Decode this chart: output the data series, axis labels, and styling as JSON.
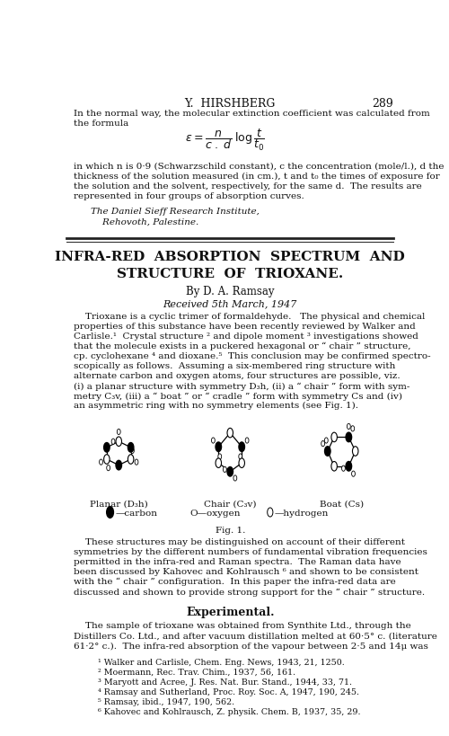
{
  "figsize": [
    5.0,
    8.19
  ],
  "dpi": 100,
  "bg_color": "#ffffff",
  "header_author": "Y.  HIRSHBERG",
  "header_page": "289",
  "title_line1": "INFRA-RED  ABSORPTION  SPECTRUM  AND",
  "title_line2": "STRUCTURE  OF  TRIOXANE.",
  "author_line": "By D. A. Ramsay",
  "received_line": "Received 5th March, 1947",
  "label_planar": "Planar (D₃h)",
  "label_chair": "Chair (C₃v)",
  "label_boat": "Boat (Cs)",
  "fig_caption": "Fig. 1.",
  "experimental_heading": "Experimental.",
  "footnotes": [
    "¹ Walker and Carlisle, Chem. Eng. News, 1943, 21, 1250.",
    "² Moermann, Rec. Trav. Chim., 1937, 56, 161.",
    "³ Maryott and Acree, J. Res. Nat. Bur. Stand., 1944, 33, 71.",
    "⁴ Ramsay and Sutherland, Proc. Roy. Soc. A, 1947, 190, 245.",
    "⁵ Ramsay, ibid., 1947, 190, 562.",
    "⁶ Kahovec and Kohlrausch, Z. physik. Chem. B, 1937, 35, 29."
  ],
  "text_color": "#111111",
  "top_para_lines": [
    "In the normal way, the molecular extinction coefficient was calculated from",
    "the formula"
  ],
  "exp_explain_lines": [
    "in which n is 0·9 (Schwarzschild constant), c the concentration (mole/l.), d the",
    "thickness of the solution measured (in cm.), t and t₀ the times of exposure for",
    "the solution and the solvent, respectively, for the same d.  The results are",
    "represented in four groups of absorption curves."
  ],
  "affil_lines": [
    "The Daniel Sieff Research Institute,",
    "    Rehovoth, Palestine."
  ],
  "intro_lines": [
    "    Trioxane is a cyclic trimer of formaldehyde.   The physical and chemical",
    "properties of this substance have been recently reviewed by Walker and",
    "Carlisle.¹  Crystal structure ² and dipole moment ³ investigations showed",
    "that the molecule exists in a puckered hexagonal or “ chair ” structure,",
    "cp. cyclohexane ⁴ and dioxane.⁵  This conclusion may be confirmed spectro-",
    "scopically as follows.  Assuming a six-membered ring structure with",
    "alternate carbon and oxygen atoms, four structures are possible, viz.",
    "(i) a planar structure with symmetry D₃h, (ii) a “ chair ” form with sym-",
    "metry C₃v, (iii) a “ boat ” or “ cradle ” form with symmetry Cs and (iv)",
    "an asymmetric ring with no symmetry elements (see Fig. 1)."
  ],
  "post_fig_lines": [
    "    These structures may be distinguished on account of their different",
    "symmetries by the different numbers of fundamental vibration frequencies",
    "permitted in the infra-red and Raman spectra.  The Raman data have",
    "been discussed by Kahovec and Kohlrausch ⁶ and shown to be consistent",
    "with the “ chair ” configuration.  In this paper the infra-red data are",
    "discussed and shown to provide strong support for the “ chair ” structure."
  ],
  "exp_para_lines": [
    "    The sample of trioxane was obtained from Synthite Ltd., through the",
    "Distillers Co. Ltd., and after vacuum distillation melted at 60·5° c. (literature",
    "61·2° c.).  The infra-red absorption of the vapour between 2·5 and 14μ was"
  ]
}
